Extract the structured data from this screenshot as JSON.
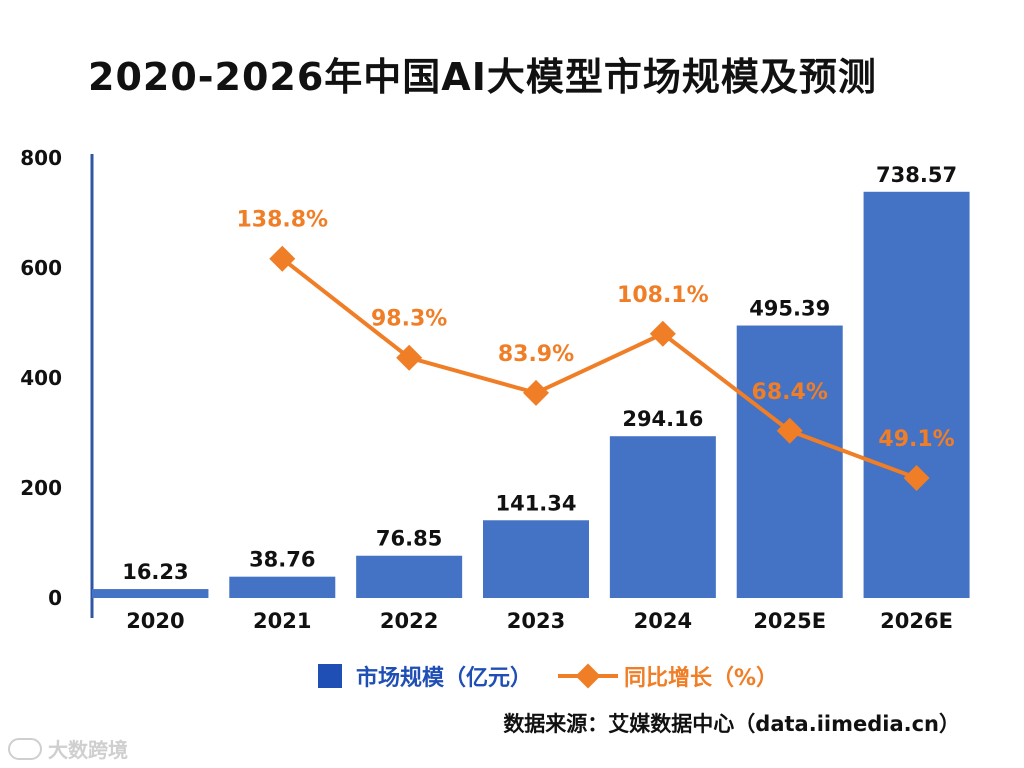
{
  "title": "2020-2026年中国AI大模型市场规模及预测",
  "colors": {
    "bar": "#4472C4",
    "line": "#F07E26",
    "axis": "#2F55A4",
    "text": "#111111",
    "legend_bar": "#1F4FB5"
  },
  "chart_data": {
    "type": "bar+line",
    "categories": [
      "2020",
      "2021",
      "2022",
      "2023",
      "2024",
      "2025E",
      "2026E"
    ],
    "series": [
      {
        "name": "市场规模（亿元）",
        "type": "bar",
        "values": [
          16.23,
          38.76,
          76.85,
          141.34,
          294.16,
          495.39,
          738.57
        ],
        "labels": [
          "16.23",
          "38.76",
          "76.85",
          "141.34",
          "294.16",
          "495.39",
          "738.57"
        ]
      },
      {
        "name": "同比增长（%）",
        "type": "line",
        "values": [
          null,
          138.8,
          98.3,
          83.9,
          108.1,
          68.4,
          49.1
        ],
        "labels": [
          "",
          "138.8%",
          "98.3%",
          "83.9%",
          "108.1%",
          "68.4%",
          "49.1%"
        ]
      }
    ],
    "y_ticks": [
      "0",
      "200",
      "400",
      "600",
      "800"
    ],
    "ylim": [
      0,
      800
    ],
    "y2lim": [
      0,
      180
    ]
  },
  "legend": {
    "bar_label": "市场规模（亿元）",
    "line_label": "同比增长（%）"
  },
  "source": "数据来源：艾媒数据中心（data.iimedia.cn）",
  "watermark": "大数跨境"
}
